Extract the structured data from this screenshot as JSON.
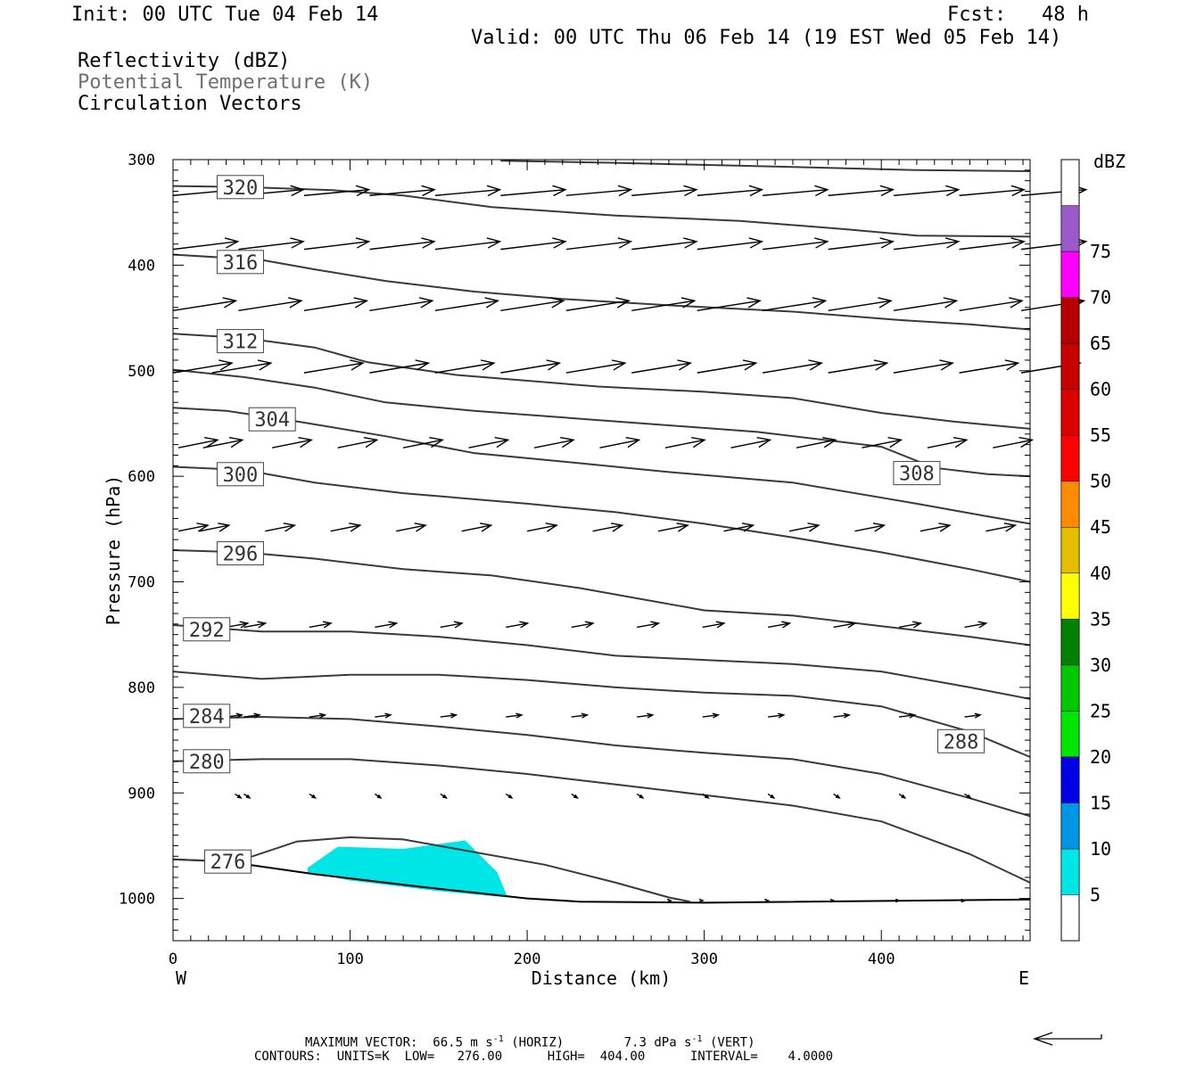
{
  "header": {
    "init": "Init: 00 UTC Tue 04 Feb 14",
    "fcst": "Fcst:   48 h",
    "valid": "Valid: 00 UTC Thu 06 Feb 14 (19 EST Wed 05 Feb 14)"
  },
  "legend": {
    "reflectivity": "Reflectivity (dBZ)",
    "potential_temperature": "Potential Temperature (K)",
    "circulation": "Circulation Vectors"
  },
  "colorbar": {
    "title": "dBZ",
    "levels": [
      {
        "label": "5",
        "color": "#00e6e6"
      },
      {
        "label": "10",
        "color": "#0096e6"
      },
      {
        "label": "15",
        "color": "#0000e6"
      },
      {
        "label": "20",
        "color": "#00e600"
      },
      {
        "label": "25",
        "color": "#00c800"
      },
      {
        "label": "30",
        "color": "#008200"
      },
      {
        "label": "35",
        "color": "#ffff00"
      },
      {
        "label": "40",
        "color": "#e6be00"
      },
      {
        "label": "45",
        "color": "#ff8c00"
      },
      {
        "label": "50",
        "color": "#ff0000"
      },
      {
        "label": "55",
        "color": "#dc0000"
      },
      {
        "label": "60",
        "color": "#c80000"
      },
      {
        "label": "65",
        "color": "#b40000"
      },
      {
        "label": "70",
        "color": "#ff00ff"
      },
      {
        "label": "75",
        "color": "#9b5ac8"
      }
    ]
  },
  "chart_data": {
    "type": "cross-section",
    "xlabel": "Distance (km)",
    "ylabel": "Pressure (hPa)",
    "xlim": [
      0,
      484
    ],
    "ylim": [
      1040,
      300
    ],
    "x_ticks": [
      0,
      100,
      200,
      300,
      400
    ],
    "y_ticks": [
      300,
      400,
      500,
      600,
      700,
      800,
      900,
      1000
    ],
    "x_end_labels": {
      "left": "W",
      "right": "E"
    },
    "theta_contours": [
      {
        "value": 276,
        "label_at": [
          31,
          965
        ],
        "points": [
          [
            0,
            963
          ],
          [
            31,
            965
          ],
          [
            45,
            960
          ],
          [
            70,
            946
          ],
          [
            100,
            942
          ],
          [
            130,
            944
          ],
          [
            170,
            956
          ],
          [
            210,
            968
          ],
          [
            250,
            985
          ],
          [
            280,
            999
          ],
          [
            292,
            1003
          ]
        ]
      },
      {
        "value": 280,
        "label_at": [
          19,
          870
        ],
        "points": [
          [
            0,
            870
          ],
          [
            50,
            868
          ],
          [
            100,
            868
          ],
          [
            150,
            874
          ],
          [
            200,
            882
          ],
          [
            250,
            892
          ],
          [
            300,
            902
          ],
          [
            350,
            912
          ],
          [
            400,
            927
          ],
          [
            450,
            958
          ],
          [
            484,
            985
          ]
        ]
      },
      {
        "value": 284,
        "label_at": [
          19,
          827
        ],
        "points": [
          [
            0,
            830
          ],
          [
            50,
            828
          ],
          [
            100,
            830
          ],
          [
            150,
            837
          ],
          [
            200,
            845
          ],
          [
            250,
            855
          ],
          [
            300,
            862
          ],
          [
            350,
            868
          ],
          [
            400,
            882
          ],
          [
            450,
            905
          ],
          [
            484,
            922
          ]
        ]
      },
      {
        "value": 288,
        "label_at": [
          445,
          851
        ],
        "points": [
          [
            0,
            785
          ],
          [
            50,
            792
          ],
          [
            100,
            788
          ],
          [
            150,
            788
          ],
          [
            200,
            793
          ],
          [
            250,
            800
          ],
          [
            300,
            805
          ],
          [
            350,
            808
          ],
          [
            400,
            818
          ],
          [
            450,
            842
          ],
          [
            484,
            866
          ]
        ]
      },
      {
        "value": 292,
        "label_at": [
          19,
          745
        ],
        "points": [
          [
            0,
            741
          ],
          [
            50,
            747
          ],
          [
            100,
            747
          ],
          [
            150,
            752
          ],
          [
            200,
            760
          ],
          [
            250,
            770
          ],
          [
            300,
            774
          ],
          [
            350,
            778
          ],
          [
            400,
            785
          ],
          [
            450,
            800
          ],
          [
            484,
            811
          ]
        ]
      },
      {
        "value": 296,
        "label_at": [
          38,
          673
        ],
        "points": [
          [
            0,
            670
          ],
          [
            40,
            672
          ],
          [
            80,
            678
          ],
          [
            130,
            688
          ],
          [
            180,
            694
          ],
          [
            230,
            706
          ],
          [
            300,
            727
          ],
          [
            350,
            732
          ],
          [
            400,
            742
          ],
          [
            450,
            752
          ],
          [
            484,
            760
          ]
        ]
      },
      {
        "value": 300,
        "label_at": [
          38,
          598
        ],
        "points": [
          [
            0,
            591
          ],
          [
            40,
            594
          ],
          [
            80,
            606
          ],
          [
            130,
            616
          ],
          [
            200,
            626
          ],
          [
            250,
            634
          ],
          [
            300,
            645
          ],
          [
            350,
            658
          ],
          [
            400,
            672
          ],
          [
            450,
            688
          ],
          [
            484,
            700
          ]
        ]
      },
      {
        "value": 304,
        "label_at": [
          56,
          546
        ],
        "points": [
          [
            0,
            535
          ],
          [
            30,
            538
          ],
          [
            70,
            548
          ],
          [
            120,
            562
          ],
          [
            170,
            578
          ],
          [
            220,
            586
          ],
          [
            280,
            596
          ],
          [
            350,
            606
          ],
          [
            420,
            626
          ],
          [
            460,
            638
          ],
          [
            484,
            645
          ]
        ]
      },
      {
        "value": 308,
        "label_at": [
          420,
          597
        ],
        "points": [
          [
            0,
            499
          ],
          [
            40,
            506
          ],
          [
            80,
            516
          ],
          [
            120,
            530
          ],
          [
            170,
            538
          ],
          [
            250,
            548
          ],
          [
            330,
            558
          ],
          [
            400,
            572
          ],
          [
            430,
            592
          ],
          [
            460,
            598
          ],
          [
            484,
            600
          ]
        ]
      },
      {
        "value": 312,
        "label_at": [
          38,
          472
        ],
        "points": [
          [
            0,
            465
          ],
          [
            40,
            469
          ],
          [
            80,
            478
          ],
          [
            110,
            492
          ],
          [
            160,
            504
          ],
          [
            240,
            515
          ],
          [
            300,
            520
          ],
          [
            350,
            526
          ],
          [
            400,
            540
          ],
          [
            440,
            548
          ],
          [
            484,
            555
          ]
        ]
      },
      {
        "value": 316,
        "label_at": [
          38,
          397
        ],
        "points": [
          [
            0,
            390
          ],
          [
            50,
            395
          ],
          [
            80,
            404
          ],
          [
            120,
            415
          ],
          [
            170,
            425
          ],
          [
            220,
            432
          ],
          [
            280,
            438
          ],
          [
            350,
            444
          ],
          [
            410,
            452
          ],
          [
            450,
            456
          ],
          [
            484,
            461
          ]
        ]
      },
      {
        "value": 320,
        "label_at": [
          38,
          326
        ],
        "points": [
          [
            0,
            325
          ],
          [
            40,
            326
          ],
          [
            90,
            329
          ],
          [
            130,
            334
          ],
          [
            180,
            345
          ],
          [
            250,
            353
          ],
          [
            320,
            358
          ],
          [
            380,
            366
          ],
          [
            420,
            372
          ],
          [
            484,
            373
          ]
        ]
      },
      {
        "value": 324,
        "label_at": null,
        "points": [
          [
            185,
            301
          ],
          [
            250,
            303
          ],
          [
            350,
            307
          ],
          [
            420,
            310
          ],
          [
            484,
            311
          ]
        ]
      }
    ],
    "reflectivity_areas": [
      {
        "dbz": 5,
        "polygon": [
          [
            76,
            971
          ],
          [
            93,
            951
          ],
          [
            130,
            953
          ],
          [
            165,
            945
          ],
          [
            183,
            975
          ],
          [
            189,
            999
          ],
          [
            150,
            993
          ],
          [
            100,
            983
          ],
          [
            76,
            975
          ]
        ]
      }
    ],
    "terrain": [
      [
        0,
        963
      ],
      [
        30,
        965
      ],
      [
        80,
        977
      ],
      [
        140,
        989
      ],
      [
        200,
        1000
      ],
      [
        230,
        1003
      ],
      [
        300,
        1004
      ],
      [
        484,
        1001
      ]
    ],
    "vector_rows": [
      {
        "p": 334,
        "x0": 0,
        "x": [
          37,
          74,
          111,
          148,
          185,
          222,
          259,
          296,
          333,
          370,
          407,
          444,
          479
        ],
        "u": 33,
        "w": -3
      },
      {
        "p": 385,
        "x0": 0,
        "x": [
          37,
          74,
          111,
          148,
          185,
          222,
          259,
          296,
          333,
          370,
          407,
          444,
          479
        ],
        "u": 33,
        "w": -4
      },
      {
        "p": 443,
        "x0": 0,
        "x": [
          37,
          74,
          111,
          148,
          185,
          222,
          259,
          296,
          333,
          370,
          407,
          444,
          479
        ],
        "u": 32,
        "w": -5
      },
      {
        "p": 502,
        "x0": 0,
        "x": [
          22,
          74,
          111,
          148,
          185,
          222,
          259,
          296,
          333,
          370,
          407,
          444,
          479
        ],
        "u": 30,
        "w": -5
      },
      {
        "p": 573,
        "x0": 3,
        "x": [
          17,
          56,
          93,
          130,
          167,
          204,
          241,
          278,
          315,
          352,
          389,
          426,
          463
        ],
        "u": 20,
        "w": -4
      },
      {
        "p": 652,
        "x0": 3,
        "x": [
          15,
          52,
          89,
          126,
          163,
          200,
          237,
          274,
          311,
          348,
          385,
          422,
          459
        ],
        "u": 15,
        "w": -3
      },
      {
        "p": 743,
        "x0": 30,
        "x": [
          40,
          77,
          114,
          151,
          188,
          225,
          262,
          299,
          336,
          373,
          410,
          447
        ],
        "u": 11,
        "w": -2
      },
      {
        "p": 828,
        "x0": 30,
        "x": [
          40,
          77,
          114,
          151,
          188,
          225,
          262,
          299,
          336,
          373,
          410,
          447
        ],
        "u": 8,
        "w": -1
      },
      {
        "p": 901,
        "x0": 35,
        "x": [
          40,
          77,
          114,
          151,
          188,
          225,
          262,
          299,
          336,
          373,
          410,
          447
        ],
        "u": 3,
        "w": 2
      },
      {
        "p": 1002,
        "x0": 280,
        "x": [
          298,
          335,
          372,
          409,
          446
        ],
        "u": 1,
        "w": 0
      }
    ]
  },
  "footer": {
    "max_vector_prefix": "MAXIMUM VECTOR:  66.5 m s",
    "max_vector_exp": "-1",
    "max_vector_mid": " (HORIZ)        7.3 dPa s",
    "max_vector_exp2": "-1",
    "max_vector_suffix": " (VERT)",
    "contours": "CONTOURS:  UNITS=K  LOW=   276.00      HIGH=  404.00      INTERVAL=    4.0000"
  }
}
